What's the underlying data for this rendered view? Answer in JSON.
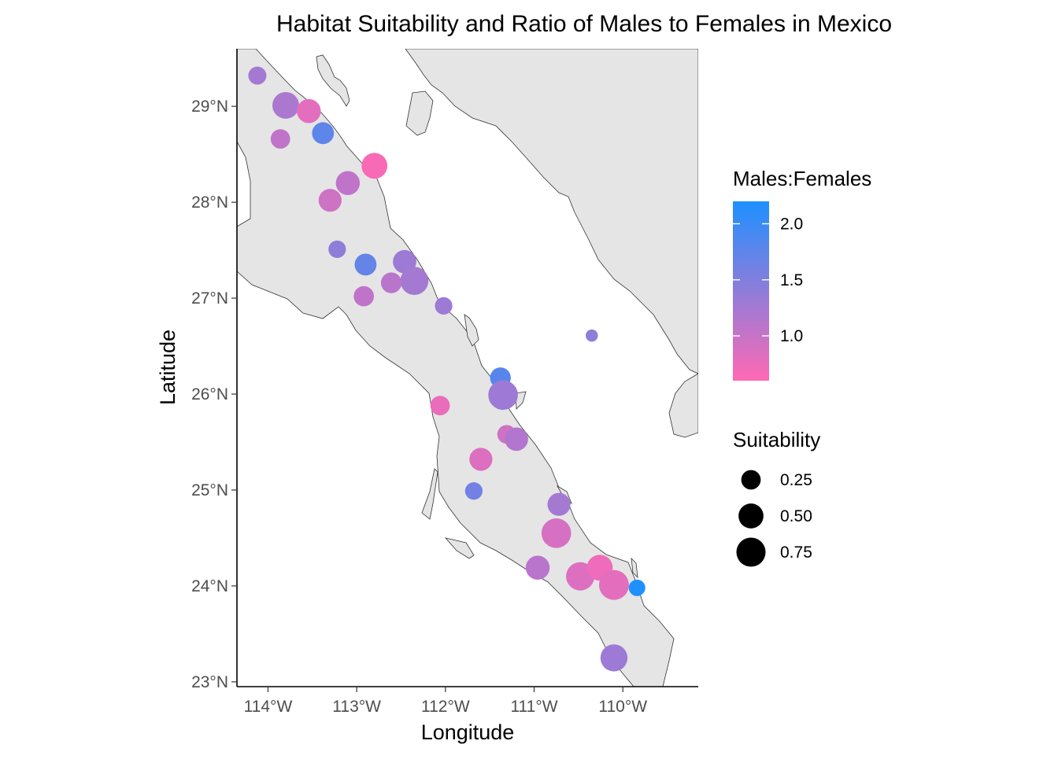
{
  "chart_data": {
    "type": "scatter",
    "title": "Habitat Suitability and Ratio of Males to Females in Mexico",
    "xlabel": "Longitude",
    "ylabel": "Latitude",
    "xlim": [
      -114.35,
      -109.15
    ],
    "ylim": [
      22.95,
      29.6
    ],
    "x_ticks": [
      {
        "value": -114,
        "label": "114°W"
      },
      {
        "value": -113,
        "label": "113°W"
      },
      {
        "value": -112,
        "label": "112°W"
      },
      {
        "value": -111,
        "label": "111°W"
      },
      {
        "value": -110,
        "label": "110°W"
      }
    ],
    "y_ticks": [
      {
        "value": 23,
        "label": "23°N"
      },
      {
        "value": 24,
        "label": "24°N"
      },
      {
        "value": 25,
        "label": "25°N"
      },
      {
        "value": 26,
        "label": "26°N"
      },
      {
        "value": 27,
        "label": "27°N"
      },
      {
        "value": 28,
        "label": "28°N"
      },
      {
        "value": 29,
        "label": "29°N"
      }
    ],
    "grid": false,
    "colors": {
      "land": "#e5e5e5",
      "coast": "#333333",
      "low": "#ff69b4",
      "high": "#1e90ff"
    },
    "color_legend": {
      "title": "Males:Females",
      "min": 0.6,
      "max": 2.2,
      "ticks": [
        {
          "value": 2.0,
          "label": "2.0"
        },
        {
          "value": 1.5,
          "label": "1.5"
        },
        {
          "value": 1.0,
          "label": "1.0"
        }
      ]
    },
    "size_legend": {
      "title": "Suitability",
      "entries": [
        {
          "value": 0.25,
          "label": "0.25"
        },
        {
          "value": 0.5,
          "label": "0.50"
        },
        {
          "value": 0.75,
          "label": "0.75"
        }
      ]
    },
    "legend_position": "right",
    "points": [
      {
        "lon": -114.12,
        "lat": 29.32,
        "suitability": 0.2,
        "ratio": 1.25
      },
      {
        "lon": -113.8,
        "lat": 29.01,
        "suitability": 0.6,
        "ratio": 1.2
      },
      {
        "lon": -113.54,
        "lat": 28.95,
        "suitability": 0.45,
        "ratio": 0.8
      },
      {
        "lon": -113.86,
        "lat": 28.66,
        "suitability": 0.25,
        "ratio": 1.05
      },
      {
        "lon": -113.38,
        "lat": 28.72,
        "suitability": 0.35,
        "ratio": 1.75
      },
      {
        "lon": -112.8,
        "lat": 28.38,
        "suitability": 0.55,
        "ratio": 0.65
      },
      {
        "lon": -113.1,
        "lat": 28.2,
        "suitability": 0.45,
        "ratio": 1.05
      },
      {
        "lon": -113.3,
        "lat": 28.02,
        "suitability": 0.4,
        "ratio": 0.95
      },
      {
        "lon": -113.22,
        "lat": 27.51,
        "suitability": 0.18,
        "ratio": 1.4
      },
      {
        "lon": -112.9,
        "lat": 27.35,
        "suitability": 0.35,
        "ratio": 1.7
      },
      {
        "lon": -112.46,
        "lat": 27.38,
        "suitability": 0.42,
        "ratio": 1.3
      },
      {
        "lon": -112.35,
        "lat": 27.18,
        "suitability": 0.68,
        "ratio": 1.25
      },
      {
        "lon": -112.61,
        "lat": 27.16,
        "suitability": 0.3,
        "ratio": 1.1
      },
      {
        "lon": -112.92,
        "lat": 27.02,
        "suitability": 0.28,
        "ratio": 1.05
      },
      {
        "lon": -112.02,
        "lat": 26.92,
        "suitability": 0.18,
        "ratio": 1.3
      },
      {
        "lon": -110.35,
        "lat": 26.61,
        "suitability": 0.05,
        "ratio": 1.4
      },
      {
        "lon": -111.38,
        "lat": 26.17,
        "suitability": 0.3,
        "ratio": 1.8
      },
      {
        "lon": -111.35,
        "lat": 25.99,
        "suitability": 0.78,
        "ratio": 1.3
      },
      {
        "lon": -112.06,
        "lat": 25.88,
        "suitability": 0.25,
        "ratio": 0.75
      },
      {
        "lon": -111.31,
        "lat": 25.58,
        "suitability": 0.22,
        "ratio": 0.95
      },
      {
        "lon": -111.2,
        "lat": 25.53,
        "suitability": 0.42,
        "ratio": 1.15
      },
      {
        "lon": -111.6,
        "lat": 25.32,
        "suitability": 0.4,
        "ratio": 0.85
      },
      {
        "lon": -111.68,
        "lat": 24.99,
        "suitability": 0.18,
        "ratio": 1.6
      },
      {
        "lon": -110.72,
        "lat": 24.85,
        "suitability": 0.4,
        "ratio": 1.25
      },
      {
        "lon": -110.75,
        "lat": 24.55,
        "suitability": 0.78,
        "ratio": 0.9
      },
      {
        "lon": -110.96,
        "lat": 24.19,
        "suitability": 0.45,
        "ratio": 1.1
      },
      {
        "lon": -110.48,
        "lat": 24.1,
        "suitability": 0.7,
        "ratio": 0.85
      },
      {
        "lon": -110.26,
        "lat": 24.19,
        "suitability": 0.55,
        "ratio": 0.72
      },
      {
        "lon": -110.1,
        "lat": 24.01,
        "suitability": 0.8,
        "ratio": 0.8
      },
      {
        "lon": -109.84,
        "lat": 23.98,
        "suitability": 0.15,
        "ratio": 2.2
      },
      {
        "lon": -110.1,
        "lat": 23.25,
        "suitability": 0.62,
        "ratio": 1.3
      }
    ]
  }
}
